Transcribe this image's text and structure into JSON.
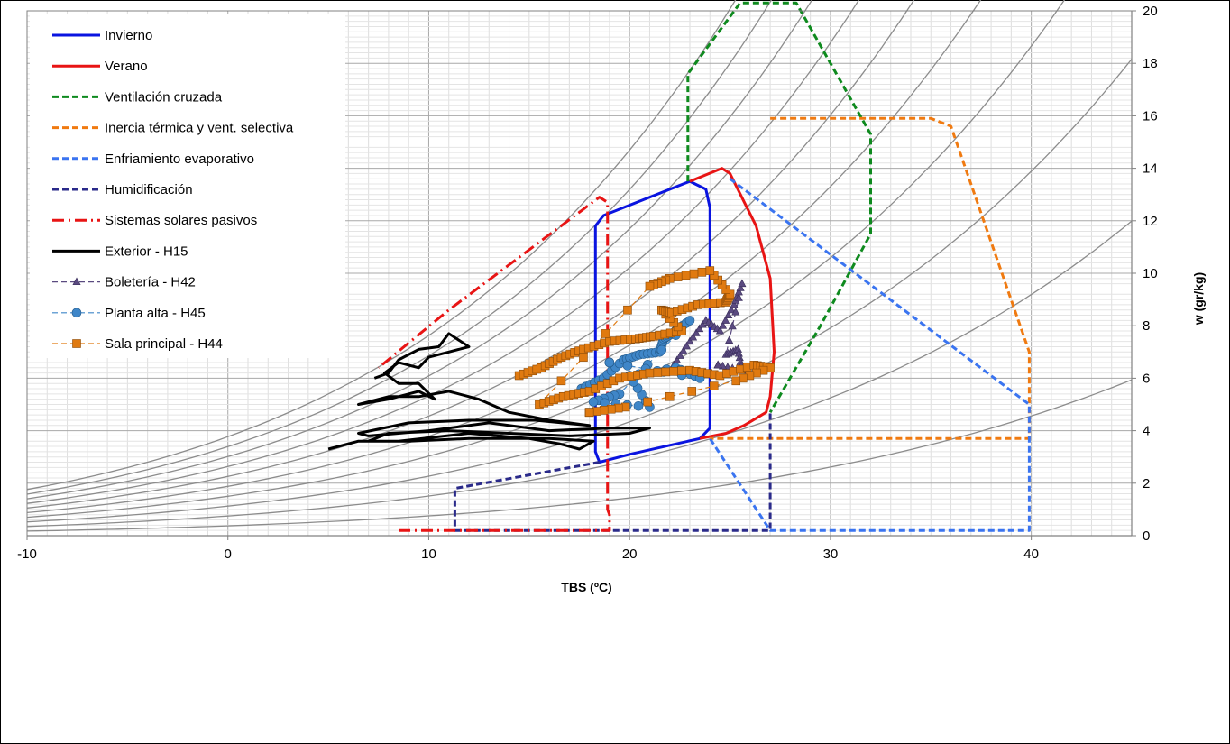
{
  "chart_data": {
    "type": "line",
    "title": "",
    "xlabel": "TBS (ºC)",
    "ylabel": "w (gr/kg)",
    "xlim": [
      -10,
      45
    ],
    "ylim": [
      0,
      20
    ],
    "x_ticks": [
      "-10",
      "0",
      "10",
      "20",
      "30",
      "40"
    ],
    "y_ticks": [
      "0",
      "2",
      "4",
      "6",
      "8",
      "10",
      "12",
      "14",
      "16",
      "18",
      "20"
    ],
    "grid": "on",
    "legend_position": "top-left",
    "rh_curves_percent": [
      10,
      20,
      30,
      40,
      50,
      60,
      70,
      80,
      90,
      100
    ],
    "series": [
      {
        "name": "Invierno",
        "color": "#0a14e0",
        "style": "solid",
        "points": [
          [
            18.5,
            2.8
          ],
          [
            18.3,
            3.2
          ],
          [
            18.3,
            11.8
          ],
          [
            18.7,
            12.2
          ],
          [
            23,
            13.5
          ],
          [
            23.8,
            13.2
          ],
          [
            24,
            12.5
          ],
          [
            24,
            4.1
          ],
          [
            23.5,
            3.7
          ],
          [
            20,
            3.1
          ],
          [
            18.5,
            2.8
          ]
        ]
      },
      {
        "name": "Verano",
        "color": "#e81414",
        "style": "solid",
        "points": [
          [
            23,
            13.5
          ],
          [
            24.6,
            14
          ],
          [
            25,
            13.8
          ],
          [
            26.3,
            11.8
          ],
          [
            27,
            9.8
          ],
          [
            27.2,
            7
          ],
          [
            27,
            5.3
          ],
          [
            26.8,
            4.7
          ],
          [
            25.7,
            4.2
          ],
          [
            24.8,
            3.9
          ],
          [
            23.5,
            3.7
          ]
        ]
      },
      {
        "name": "Ventilación cruzada",
        "color": "#0e8a1e",
        "style": "dash",
        "points": [
          [
            22.9,
            13.5
          ],
          [
            22.9,
            17.6
          ],
          [
            25.5,
            20.3
          ],
          [
            28.3,
            20.3
          ],
          [
            32,
            15.3
          ],
          [
            32,
            11.5
          ],
          [
            29.5,
            8
          ],
          [
            27,
            4.7
          ]
        ]
      },
      {
        "name": "Inercia térmica y vent. selectiva",
        "color": "#f07a10",
        "style": "dash",
        "points": [
          [
            27,
            15.9
          ],
          [
            35,
            15.9
          ],
          [
            36,
            15.6
          ],
          [
            39.9,
            7
          ],
          [
            39.9,
            3.7
          ],
          [
            24,
            3.7
          ]
        ]
      },
      {
        "name": "Enfriamiento evaporativo",
        "color": "#3a74f0",
        "style": "dash",
        "points": [
          [
            25,
            13.6
          ],
          [
            39.9,
            5
          ],
          [
            39.9,
            0.2
          ],
          [
            27,
            0.2
          ],
          [
            24,
            3.7
          ]
        ]
      },
      {
        "name": "Humidificación",
        "color": "#2a2a8a",
        "style": "dash",
        "points": [
          [
            18.5,
            2.8
          ],
          [
            11.3,
            1.8
          ],
          [
            11.3,
            0.2
          ],
          [
            27,
            0.2
          ],
          [
            27,
            4.7
          ]
        ]
      },
      {
        "name": "Sistemas solares pasivos",
        "color": "#e81414",
        "style": "dashdot",
        "points": [
          [
            8.5,
            0.2
          ],
          [
            19,
            0.2
          ],
          [
            19,
            0.8
          ],
          [
            18.9,
            1
          ],
          [
            18.9,
            12.7
          ],
          [
            18.5,
            12.9
          ],
          [
            11,
            8.6
          ],
          [
            7.5,
            6.4
          ]
        ]
      },
      {
        "name": "Exterior - H15",
        "color": "#000000",
        "style": "solid",
        "points": [
          [
            5,
            3.3
          ],
          [
            6.5,
            3.6
          ],
          [
            8.5,
            3.6
          ],
          [
            12,
            3.9
          ],
          [
            15,
            3.7
          ],
          [
            16.5,
            3.5
          ],
          [
            17.5,
            3.3
          ],
          [
            18.2,
            3.6
          ],
          [
            16,
            3.7
          ],
          [
            12,
            3.7
          ],
          [
            9,
            3.6
          ],
          [
            7,
            3.6
          ],
          [
            8,
            3.9
          ],
          [
            11,
            4
          ],
          [
            14,
            3.9
          ],
          [
            17,
            3.8
          ],
          [
            20,
            3.9
          ],
          [
            21,
            4.1
          ],
          [
            19,
            4.1
          ],
          [
            16,
            4
          ],
          [
            13,
            4.3
          ],
          [
            10,
            4
          ],
          [
            7,
            3.8
          ],
          [
            6.5,
            3.9
          ],
          [
            9,
            4.3
          ],
          [
            12,
            4.4
          ],
          [
            15.3,
            4.4
          ],
          [
            18,
            4.2
          ],
          [
            16,
            4.4
          ],
          [
            14,
            4.7
          ],
          [
            12.5,
            5.2
          ],
          [
            11,
            5.5
          ],
          [
            9.5,
            5.3
          ],
          [
            8,
            5.3
          ],
          [
            6.5,
            5
          ],
          [
            8,
            5.2
          ],
          [
            9.5,
            5.5
          ],
          [
            10.3,
            5.2
          ],
          [
            9.5,
            5.8
          ],
          [
            8.5,
            5.8
          ],
          [
            7.8,
            6.2
          ],
          [
            8.5,
            6.6
          ],
          [
            9.5,
            6.4
          ],
          [
            10,
            6.8
          ],
          [
            11,
            7
          ],
          [
            12,
            7.2
          ],
          [
            11,
            7.7
          ],
          [
            10.5,
            7.2
          ],
          [
            9.5,
            7.1
          ],
          [
            8.5,
            6.7
          ],
          [
            8,
            6.2
          ],
          [
            7.3,
            6
          ]
        ]
      },
      {
        "name": "Boletería - H42",
        "color": "#5a4a80",
        "style": "dash-triangle",
        "points": [
          [
            22.2,
            6.5
          ],
          [
            23,
            7.4
          ],
          [
            23.8,
            8.2
          ],
          [
            24.5,
            7.8
          ],
          [
            25.2,
            8.8
          ],
          [
            25.6,
            9.6
          ],
          [
            24.8,
            6.9
          ],
          [
            25.4,
            7.1
          ],
          [
            25.6,
            6.3
          ],
          [
            24.4,
            6.5
          ]
        ]
      },
      {
        "name": "Planta alta - H45",
        "color": "#3f86c8",
        "style": "dash-circle",
        "points": [
          [
            17.6,
            5.6
          ],
          [
            18.7,
            6
          ],
          [
            19.7,
            6.7
          ],
          [
            20.5,
            6.9
          ],
          [
            21.5,
            7
          ],
          [
            21.7,
            7.5
          ],
          [
            22.1,
            7.7
          ],
          [
            23,
            8.2
          ],
          [
            19.5,
            5.4
          ],
          [
            18.2,
            5.1
          ],
          [
            21,
            4.9
          ],
          [
            20,
            6.1
          ],
          [
            22.3,
            6.4
          ],
          [
            23.5,
            6
          ],
          [
            19,
            6.6
          ]
        ]
      },
      {
        "name": "Sala principal - H44",
        "color": "#e07a10",
        "style": "dash-square",
        "points": [
          [
            14.5,
            6.1
          ],
          [
            15.6,
            6.4
          ],
          [
            16.6,
            6.8
          ],
          [
            17.7,
            7.1
          ],
          [
            19,
            7.4
          ],
          [
            20.3,
            7.5
          ],
          [
            21.2,
            7.6
          ],
          [
            22.6,
            7.8
          ],
          [
            21.6,
            8.6
          ],
          [
            22.1,
            8.5
          ],
          [
            23.4,
            8.8
          ],
          [
            24.8,
            8.9
          ],
          [
            25,
            9.2
          ],
          [
            24,
            10.1
          ],
          [
            22,
            9.8
          ],
          [
            21,
            9.5
          ],
          [
            15.5,
            5
          ],
          [
            16.7,
            5.3
          ],
          [
            18,
            5.5
          ],
          [
            19.5,
            6
          ],
          [
            21,
            6.2
          ],
          [
            23,
            6.3
          ],
          [
            24.5,
            6.1
          ],
          [
            26.2,
            6.5
          ],
          [
            27,
            6.4
          ],
          [
            25.3,
            5.9
          ],
          [
            19.8,
            4.9
          ],
          [
            18,
            4.7
          ]
        ]
      }
    ]
  }
}
